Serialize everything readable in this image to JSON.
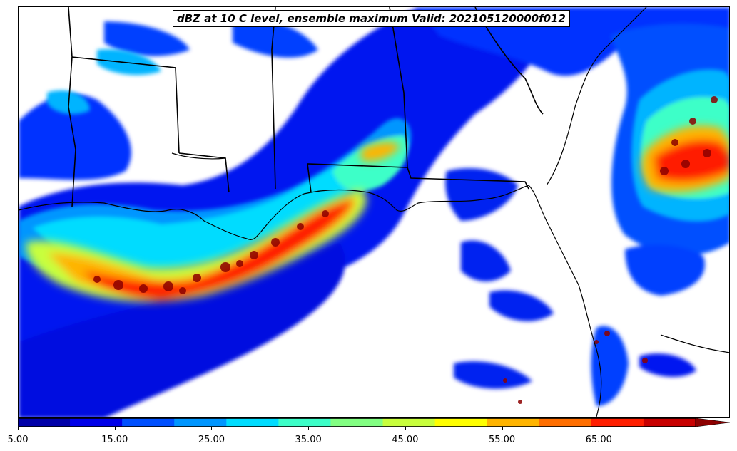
{
  "title": "dBZ at 10 C level, ensemble maximum Valid: 202105120000f012",
  "colorbar": {
    "min": 5,
    "max": 75,
    "step": 5,
    "extend": "max",
    "colors": [
      "#0000a8",
      "#0000e8",
      "#0050ff",
      "#0096ff",
      "#00dcff",
      "#3cffc8",
      "#82ff82",
      "#c8ff3c",
      "#ffff00",
      "#ffb400",
      "#ff6e00",
      "#ff1e00",
      "#c80000",
      "#8c0000"
    ],
    "tick_labels": [
      "5.00",
      "15.00",
      "25.00",
      "35.00",
      "45.00",
      "55.00",
      "65.00"
    ],
    "tick_values": [
      5,
      15,
      25,
      35,
      45,
      55,
      65
    ]
  },
  "colors": {
    "background": "#ffffff",
    "border": "#000000",
    "coastline": "#000000"
  }
}
